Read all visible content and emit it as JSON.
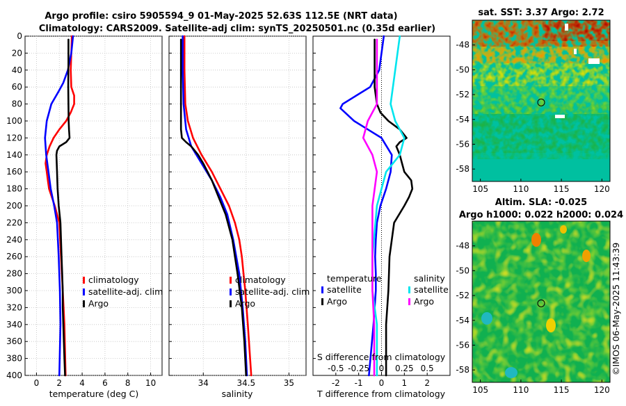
{
  "title_line1": "Argo profile: csiro 5905594_9 01-May-2025 52.63S 112.5E (NRT data)",
  "title_line2": "Climatology: CARS2009. Satellite-adj clim: synTS_20250501.nc (0.35d earlier)",
  "watermark": "©IMOS 06-May-2025 11:43:39",
  "colors": {
    "climatology": "#ff0000",
    "satellite": "#0000ff",
    "argo": "#000000",
    "sal_satellite": "#00e5ee",
    "sal_argo": "#ff00ff"
  },
  "chart_data": [
    {
      "type": "line",
      "id": "temperature",
      "xlabel": "temperature (deg C)",
      "xlim": [
        -1,
        11
      ],
      "ylim": [
        0,
        400
      ],
      "y_reversed": true,
      "xticks": [
        "0",
        "2",
        "4",
        "6",
        "8",
        "10"
      ],
      "yticks": [
        "0",
        "20",
        "40",
        "60",
        "80",
        "100",
        "120",
        "140",
        "160",
        "180",
        "200",
        "220",
        "240",
        "260",
        "280",
        "300",
        "320",
        "340",
        "360",
        "380",
        "400"
      ],
      "grid": true,
      "legend": [
        "climatology",
        "satellite-adj. clim",
        "Argo"
      ],
      "legend_position": "right",
      "series": [
        {
          "name": "climatology",
          "color_key": "climatology",
          "depth": [
            0,
            40,
            60,
            70,
            80,
            90,
            100,
            110,
            120,
            130,
            140,
            150,
            160,
            170,
            180,
            200,
            220,
            260,
            300,
            340,
            400
          ],
          "values": [
            3.1,
            3.0,
            3.05,
            3.3,
            3.3,
            3.0,
            2.6,
            2.0,
            1.5,
            1.15,
            0.9,
            0.8,
            0.9,
            1.0,
            1.1,
            1.6,
            2.0,
            2.15,
            2.3,
            2.45,
            2.55
          ]
        },
        {
          "name": "satellite-adj. clim",
          "color_key": "satellite",
          "depth": [
            0,
            20,
            40,
            55,
            65,
            80,
            100,
            120,
            140,
            160,
            180,
            200,
            220,
            260,
            300,
            340,
            400
          ],
          "values": [
            3.2,
            3.05,
            2.75,
            2.35,
            1.95,
            1.3,
            0.9,
            0.75,
            0.85,
            1.05,
            1.25,
            1.55,
            1.8,
            1.95,
            2.05,
            2.1,
            2.0
          ]
        },
        {
          "name": "Argo",
          "color_key": "argo",
          "depth": [
            4,
            30,
            60,
            80,
            100,
            110,
            120,
            125,
            130,
            135,
            140,
            160,
            180,
            200,
            220,
            240,
            260,
            280,
            300,
            320,
            340,
            360,
            380,
            400
          ],
          "values": [
            2.8,
            2.8,
            2.78,
            2.8,
            2.82,
            2.85,
            2.9,
            2.6,
            2.0,
            1.8,
            1.75,
            1.8,
            1.85,
            1.95,
            2.1,
            2.15,
            2.2,
            2.25,
            2.3,
            2.3,
            2.35,
            2.4,
            2.45,
            2.5
          ]
        }
      ]
    },
    {
      "type": "line",
      "id": "salinity",
      "xlabel": "salinity",
      "xlim": [
        33.6,
        35.2
      ],
      "ylim": [
        0,
        400
      ],
      "y_reversed": true,
      "xticks": [
        "34",
        "34.5",
        "35"
      ],
      "grid": true,
      "legend": [
        "climatology",
        "satellite-adj. clim",
        "Argo"
      ],
      "legend_position": "right",
      "series": [
        {
          "name": "climatology",
          "color_key": "climatology",
          "depth": [
            0,
            40,
            80,
            100,
            120,
            140,
            160,
            180,
            200,
            220,
            240,
            260,
            280,
            300,
            340,
            400
          ],
          "values": [
            33.78,
            33.78,
            33.79,
            33.82,
            33.88,
            33.98,
            34.1,
            34.2,
            34.3,
            34.37,
            34.42,
            34.45,
            34.47,
            34.49,
            34.52,
            34.56
          ]
        },
        {
          "name": "satellite-adj. clim",
          "color_key": "satellite",
          "depth": [
            0,
            40,
            80,
            110,
            130,
            150,
            170,
            190,
            210,
            240,
            280,
            320,
            360,
            400
          ],
          "values": [
            33.76,
            33.76,
            33.77,
            33.8,
            33.86,
            33.98,
            34.1,
            34.2,
            34.28,
            34.35,
            34.42,
            34.46,
            34.49,
            34.51
          ]
        },
        {
          "name": "Argo",
          "color_key": "argo",
          "depth": [
            4,
            60,
            100,
            110,
            120,
            125,
            130,
            140,
            150,
            170,
            190,
            210,
            240,
            280,
            320,
            360,
            400
          ],
          "values": [
            33.74,
            33.74,
            33.74,
            33.74,
            33.75,
            33.8,
            33.86,
            33.94,
            34.0,
            34.1,
            34.18,
            34.26,
            34.34,
            34.4,
            34.45,
            34.48,
            34.5
          ]
        }
      ]
    },
    {
      "type": "line",
      "id": "difference",
      "xlabel": "T difference from climatology",
      "xlabel_top": "S difference from climatology",
      "xlim": [
        -3,
        3
      ],
      "ylim": [
        0,
        400
      ],
      "y_reversed": true,
      "xticks": [
        "-2",
        "-1",
        "0",
        "1",
        "2"
      ],
      "xticks_salinity": [
        "-0.5",
        "-0.25",
        "0",
        "0.25",
        "0.5"
      ],
      "grid": false,
      "legend": [
        "temperature",
        "satellite",
        "Argo",
        "salinity",
        "satellite",
        "Argo"
      ],
      "series": [
        {
          "name": "T satellite",
          "color_key": "satellite",
          "depth": [
            0,
            40,
            60,
            70,
            80,
            85,
            90,
            100,
            110,
            120,
            140,
            160,
            180,
            200,
            220,
            240,
            260,
            280,
            300,
            340,
            400
          ],
          "values": [
            0.1,
            -0.1,
            -0.5,
            -1.1,
            -1.7,
            -1.8,
            -1.6,
            -1.2,
            -0.6,
            0.0,
            0.45,
            0.4,
            0.2,
            -0.05,
            -0.2,
            -0.25,
            -0.28,
            -0.25,
            -0.25,
            -0.35,
            -0.55
          ]
        },
        {
          "name": "T Argo",
          "color_key": "argo",
          "depth": [
            4,
            40,
            60,
            80,
            90,
            100,
            110,
            120,
            125,
            130,
            140,
            150,
            160,
            170,
            180,
            190,
            200,
            220,
            260,
            300,
            340,
            400
          ],
          "values": [
            -0.3,
            -0.3,
            -0.3,
            -0.2,
            -0.05,
            0.3,
            0.8,
            1.1,
            0.8,
            0.65,
            0.8,
            0.9,
            1.0,
            1.3,
            1.35,
            1.2,
            1.0,
            0.55,
            0.35,
            0.3,
            0.2,
            0.2
          ]
        },
        {
          "name": "S satellite",
          "color_key": "sal_satellite",
          "depth": [
            0,
            40,
            80,
            100,
            120,
            140,
            160,
            200,
            260,
            300,
            340,
            400
          ],
          "values": [
            0.2,
            0.15,
            0.1,
            0.15,
            0.25,
            0.2,
            0.05,
            -0.05,
            -0.1,
            -0.1,
            -0.05,
            -0.05
          ]
        },
        {
          "name": "S Argo",
          "color_key": "sal_argo",
          "depth": [
            4,
            80,
            100,
            120,
            140,
            160,
            200,
            260,
            300,
            340,
            400
          ],
          "values": [
            -0.05,
            -0.05,
            -0.15,
            -0.2,
            -0.1,
            -0.05,
            -0.1,
            -0.1,
            -0.1,
            -0.08,
            -0.08
          ]
        }
      ]
    },
    {
      "type": "heatmap",
      "id": "sst_map",
      "title": "sat. SST: 3.37 Argo: 2.72",
      "xlim": [
        104,
        121
      ],
      "ylim": [
        -59,
        -46
      ],
      "xticks": [
        "105",
        "110",
        "115",
        "120"
      ],
      "yticks": [
        "-48",
        "-50",
        "-52",
        "-54",
        "-56",
        "-58"
      ],
      "argo_position": {
        "lon": 112.5,
        "lat": -52.63
      }
    },
    {
      "type": "heatmap",
      "id": "sla_map",
      "title": "Altim. SLA: -0.025",
      "subtitle": "Argo h1000: 0.022 h2000: 0.024",
      "xlim": [
        104,
        121
      ],
      "ylim": [
        -59,
        -46
      ],
      "xticks": [
        "105",
        "110",
        "115",
        "120"
      ],
      "yticks": [
        "-48",
        "-50",
        "-52",
        "-54",
        "-56",
        "-58"
      ],
      "argo_position": {
        "lon": 112.5,
        "lat": -52.63
      }
    }
  ]
}
